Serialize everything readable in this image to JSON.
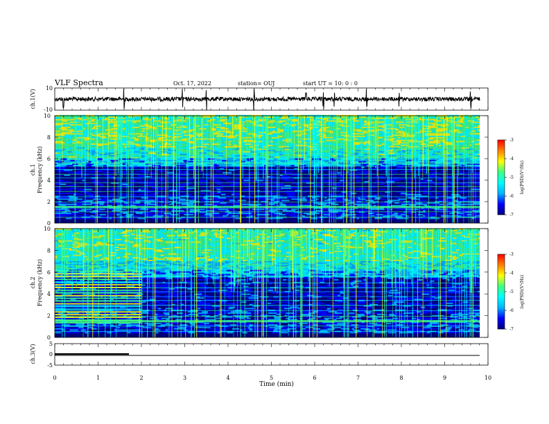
{
  "header": {
    "title": "VLF Spectra",
    "date": "Oct. 17, 2022",
    "station": "station= OUJ",
    "start": "start  UT =   10: 0  : 0"
  },
  "colors": {
    "line": "#000000",
    "colormap": [
      "#000080",
      "#0000ff",
      "#00b4ff",
      "#00ffff",
      "#40ff80",
      "#ffff00",
      "#ff8000",
      "#ff0000",
      "#ffffff"
    ]
  },
  "chart_data": [
    {
      "type": "line",
      "ylabel": "ch.1(V)",
      "yticklabels": [
        "10",
        "-10"
      ],
      "ylim": [
        -10,
        10
      ],
      "description_level": 0,
      "spikes_x": [
        0.2,
        1.6,
        2.95,
        3.5,
        4.6,
        5.8,
        6.45,
        6.2,
        7.95,
        7.2,
        9.6
      ]
    },
    {
      "type": "heatmap",
      "ylabel": "ch.1\nFrequency (kHz)",
      "ylabel_line1": "ch.1",
      "ylabel_line2": "Frequency (kHz)",
      "yticklabels": [
        "0",
        "2",
        "4",
        "6",
        "8",
        "10"
      ],
      "ylim": [
        0,
        10
      ],
      "xlim": [
        0,
        10
      ],
      "colorbar": {
        "label": "log(PSD)(V²/Hz)",
        "ticklabels": [
          "-3",
          "-4",
          "-5",
          "-6",
          "-7"
        ],
        "range": [
          -7,
          -3
        ]
      }
    },
    {
      "type": "heatmap",
      "ylabel_line1": "ch.2",
      "ylabel_line2": "Frequency (kHz)",
      "yticklabels": [
        "0",
        "2",
        "4",
        "6",
        "8",
        "10"
      ],
      "ylim": [
        0,
        10
      ],
      "xlim": [
        0,
        10
      ],
      "colorbar": {
        "label": "log(PSD)(V²/Hz)",
        "ticklabels": [
          "-3",
          "-4",
          "-5",
          "-6",
          "-7"
        ],
        "range": [
          -7,
          -3
        ]
      }
    },
    {
      "type": "line",
      "ylabel": "ch.3(V)",
      "yticklabels": [
        "5",
        "0",
        "-5"
      ],
      "ylim": [
        -5,
        5
      ],
      "segments": [
        {
          "x": [
            0,
            1.7
          ],
          "y": 0,
          "style": "thick"
        },
        {
          "x": [
            0,
            9.8
          ],
          "y": 0,
          "style": "thin"
        }
      ]
    }
  ],
  "xaxis": {
    "label": "Time  (min)",
    "ticklabels": [
      "0",
      "1",
      "2",
      "3",
      "4",
      "5",
      "6",
      "7",
      "8",
      "9",
      "10"
    ],
    "xlim": [
      0,
      10
    ]
  }
}
